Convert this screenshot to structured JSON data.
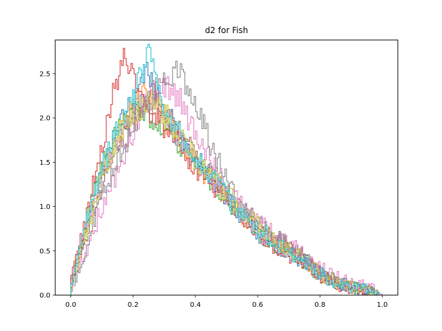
{
  "chart_data": {
    "type": "line",
    "step": true,
    "title": "d2 for Fish",
    "xlabel": "",
    "ylabel": "",
    "xlim": [
      -0.05,
      1.05
    ],
    "ylim": [
      0.0,
      2.88
    ],
    "xticks": [
      0.0,
      0.2,
      0.4,
      0.6,
      0.8,
      1.0
    ],
    "xtick_labels": [
      "0.0",
      "0.2",
      "0.4",
      "0.6",
      "0.8",
      "1.0"
    ],
    "yticks": [
      0.0,
      0.5,
      1.0,
      1.5,
      2.0,
      2.5
    ],
    "ytick_labels": [
      "0.0",
      "0.5",
      "1.0",
      "1.5",
      "2.0",
      "2.5"
    ],
    "grid": false,
    "legend": "none",
    "bins": 200,
    "series": [
      {
        "color": "#1f77b4",
        "peak_x": 0.25,
        "peak_y": 2.55,
        "x_end": 0.99,
        "values": [
          [
            0.0,
            0.1
          ],
          [
            0.05,
            0.8
          ],
          [
            0.1,
            1.4
          ],
          [
            0.15,
            1.85
          ],
          [
            0.2,
            2.2
          ],
          [
            0.25,
            2.55
          ],
          [
            0.3,
            2.1
          ],
          [
            0.35,
            1.8
          ],
          [
            0.4,
            1.55
          ],
          [
            0.45,
            1.35
          ],
          [
            0.5,
            1.1
          ],
          [
            0.55,
            0.9
          ],
          [
            0.6,
            0.7
          ],
          [
            0.65,
            0.6
          ],
          [
            0.7,
            0.48
          ],
          [
            0.75,
            0.38
          ],
          [
            0.8,
            0.25
          ],
          [
            0.85,
            0.14
          ],
          [
            0.9,
            0.09
          ],
          [
            0.95,
            0.06
          ],
          [
            0.99,
            0.0
          ]
        ]
      },
      {
        "color": "#ff7f0e",
        "peak_x": 0.25,
        "peak_y": 2.3,
        "x_end": 0.99,
        "values": [
          [
            0.0,
            0.1
          ],
          [
            0.05,
            0.75
          ],
          [
            0.1,
            1.4
          ],
          [
            0.15,
            1.8
          ],
          [
            0.2,
            2.1
          ],
          [
            0.25,
            2.3
          ],
          [
            0.3,
            2.0
          ],
          [
            0.35,
            1.75
          ],
          [
            0.4,
            1.5
          ],
          [
            0.45,
            1.3
          ],
          [
            0.5,
            1.1
          ],
          [
            0.55,
            0.9
          ],
          [
            0.6,
            0.75
          ],
          [
            0.65,
            0.62
          ],
          [
            0.7,
            0.5
          ],
          [
            0.75,
            0.38
          ],
          [
            0.8,
            0.24
          ],
          [
            0.85,
            0.13
          ],
          [
            0.9,
            0.08
          ],
          [
            0.95,
            0.05
          ],
          [
            0.99,
            0.0
          ]
        ]
      },
      {
        "color": "#2ca02c",
        "peak_x": 0.22,
        "peak_y": 2.1,
        "x_end": 0.99,
        "values": [
          [
            0.0,
            0.1
          ],
          [
            0.05,
            0.8
          ],
          [
            0.1,
            1.45
          ],
          [
            0.15,
            1.85
          ],
          [
            0.2,
            2.05
          ],
          [
            0.22,
            2.1
          ],
          [
            0.3,
            1.9
          ],
          [
            0.35,
            1.7
          ],
          [
            0.4,
            1.5
          ],
          [
            0.45,
            1.3
          ],
          [
            0.5,
            1.1
          ],
          [
            0.55,
            0.9
          ],
          [
            0.6,
            0.72
          ],
          [
            0.65,
            0.6
          ],
          [
            0.7,
            0.48
          ],
          [
            0.75,
            0.36
          ],
          [
            0.8,
            0.22
          ],
          [
            0.85,
            0.13
          ],
          [
            0.9,
            0.08
          ],
          [
            0.95,
            0.05
          ],
          [
            0.99,
            0.0
          ]
        ]
      },
      {
        "color": "#d62728",
        "peak_x": 0.17,
        "peak_y": 2.7,
        "x_end": 0.99,
        "values": [
          [
            0.0,
            0.15
          ],
          [
            0.05,
            0.9
          ],
          [
            0.1,
            1.7
          ],
          [
            0.15,
            2.45
          ],
          [
            0.17,
            2.7
          ],
          [
            0.2,
            2.5
          ],
          [
            0.25,
            2.1
          ],
          [
            0.3,
            1.9
          ],
          [
            0.35,
            1.7
          ],
          [
            0.4,
            1.45
          ],
          [
            0.45,
            1.25
          ],
          [
            0.5,
            1.05
          ],
          [
            0.55,
            0.85
          ],
          [
            0.6,
            0.68
          ],
          [
            0.65,
            0.56
          ],
          [
            0.7,
            0.45
          ],
          [
            0.75,
            0.35
          ],
          [
            0.8,
            0.22
          ],
          [
            0.85,
            0.12
          ],
          [
            0.9,
            0.08
          ],
          [
            0.95,
            0.05
          ],
          [
            0.99,
            0.0
          ]
        ]
      },
      {
        "color": "#9467bd",
        "peak_x": 0.26,
        "peak_y": 2.25,
        "x_end": 0.99,
        "values": [
          [
            0.0,
            0.08
          ],
          [
            0.05,
            0.7
          ],
          [
            0.1,
            1.3
          ],
          [
            0.15,
            1.75
          ],
          [
            0.2,
            2.05
          ],
          [
            0.26,
            2.25
          ],
          [
            0.3,
            2.0
          ],
          [
            0.35,
            1.75
          ],
          [
            0.4,
            1.5
          ],
          [
            0.45,
            1.32
          ],
          [
            0.5,
            1.12
          ],
          [
            0.55,
            0.92
          ],
          [
            0.6,
            0.75
          ],
          [
            0.65,
            0.62
          ],
          [
            0.7,
            0.5
          ],
          [
            0.75,
            0.38
          ],
          [
            0.8,
            0.24
          ],
          [
            0.85,
            0.14
          ],
          [
            0.9,
            0.09
          ],
          [
            0.95,
            0.06
          ],
          [
            0.99,
            0.0
          ]
        ]
      },
      {
        "color": "#8c564b",
        "peak_x": 0.28,
        "peak_y": 2.15,
        "x_end": 0.99,
        "values": [
          [
            0.0,
            0.08
          ],
          [
            0.05,
            0.65
          ],
          [
            0.1,
            1.25
          ],
          [
            0.15,
            1.7
          ],
          [
            0.2,
            2.0
          ],
          [
            0.28,
            2.15
          ],
          [
            0.35,
            1.85
          ],
          [
            0.4,
            1.6
          ],
          [
            0.45,
            1.4
          ],
          [
            0.5,
            1.15
          ],
          [
            0.55,
            0.95
          ],
          [
            0.6,
            0.78
          ],
          [
            0.65,
            0.65
          ],
          [
            0.7,
            0.52
          ],
          [
            0.75,
            0.4
          ],
          [
            0.8,
            0.26
          ],
          [
            0.85,
            0.15
          ],
          [
            0.9,
            0.09
          ],
          [
            0.95,
            0.06
          ],
          [
            0.99,
            0.0
          ]
        ]
      },
      {
        "color": "#e377c2",
        "peak_x": 0.3,
        "peak_y": 2.4,
        "x_end": 1.0,
        "values": [
          [
            0.0,
            0.05
          ],
          [
            0.05,
            0.5
          ],
          [
            0.1,
            1.0
          ],
          [
            0.15,
            1.4
          ],
          [
            0.2,
            1.85
          ],
          [
            0.25,
            2.2
          ],
          [
            0.3,
            2.4
          ],
          [
            0.35,
            2.2
          ],
          [
            0.4,
            1.85
          ],
          [
            0.45,
            1.55
          ],
          [
            0.5,
            1.25
          ],
          [
            0.55,
            1.0
          ],
          [
            0.6,
            0.82
          ],
          [
            0.65,
            0.7
          ],
          [
            0.7,
            0.58
          ],
          [
            0.75,
            0.45
          ],
          [
            0.8,
            0.3
          ],
          [
            0.85,
            0.2
          ],
          [
            0.9,
            0.14
          ],
          [
            0.95,
            0.1
          ],
          [
            1.0,
            0.0
          ]
        ]
      },
      {
        "color": "#7f7f7f",
        "peak_x": 0.35,
        "peak_y": 2.55,
        "x_end": 0.99,
        "values": [
          [
            0.0,
            0.05
          ],
          [
            0.05,
            0.55
          ],
          [
            0.1,
            1.1
          ],
          [
            0.15,
            1.5
          ],
          [
            0.2,
            1.9
          ],
          [
            0.25,
            2.2
          ],
          [
            0.3,
            2.45
          ],
          [
            0.35,
            2.55
          ],
          [
            0.4,
            2.2
          ],
          [
            0.45,
            1.7
          ],
          [
            0.5,
            1.3
          ],
          [
            0.55,
            1.0
          ],
          [
            0.6,
            0.8
          ],
          [
            0.65,
            0.68
          ],
          [
            0.7,
            0.55
          ],
          [
            0.75,
            0.42
          ],
          [
            0.8,
            0.28
          ],
          [
            0.85,
            0.17
          ],
          [
            0.9,
            0.1
          ],
          [
            0.95,
            0.06
          ],
          [
            0.99,
            0.0
          ]
        ]
      },
      {
        "color": "#bcbd22",
        "peak_x": 0.27,
        "peak_y": 2.2,
        "x_end": 0.99,
        "values": [
          [
            0.0,
            0.08
          ],
          [
            0.05,
            0.7
          ],
          [
            0.1,
            1.35
          ],
          [
            0.15,
            1.8
          ],
          [
            0.2,
            2.05
          ],
          [
            0.27,
            2.2
          ],
          [
            0.3,
            2.05
          ],
          [
            0.35,
            1.8
          ],
          [
            0.4,
            1.55
          ],
          [
            0.45,
            1.35
          ],
          [
            0.5,
            1.15
          ],
          [
            0.55,
            0.95
          ],
          [
            0.6,
            0.78
          ],
          [
            0.65,
            0.64
          ],
          [
            0.7,
            0.52
          ],
          [
            0.75,
            0.4
          ],
          [
            0.8,
            0.25
          ],
          [
            0.85,
            0.14
          ],
          [
            0.9,
            0.09
          ],
          [
            0.95,
            0.05
          ],
          [
            0.99,
            0.0
          ]
        ]
      },
      {
        "color": "#17becf",
        "peak_x": 0.25,
        "peak_y": 2.75,
        "x_end": 0.99,
        "values": [
          [
            0.0,
            0.1
          ],
          [
            0.05,
            0.8
          ],
          [
            0.1,
            1.45
          ],
          [
            0.15,
            1.85
          ],
          [
            0.2,
            2.2
          ],
          [
            0.25,
            2.75
          ],
          [
            0.3,
            2.1
          ],
          [
            0.35,
            1.8
          ],
          [
            0.4,
            1.55
          ],
          [
            0.45,
            1.35
          ],
          [
            0.5,
            1.12
          ],
          [
            0.55,
            0.92
          ],
          [
            0.6,
            0.75
          ],
          [
            0.65,
            0.62
          ],
          [
            0.7,
            0.5
          ],
          [
            0.75,
            0.38
          ],
          [
            0.8,
            0.24
          ],
          [
            0.85,
            0.14
          ],
          [
            0.9,
            0.09
          ],
          [
            0.95,
            0.06
          ],
          [
            0.99,
            0.0
          ]
        ]
      }
    ]
  }
}
